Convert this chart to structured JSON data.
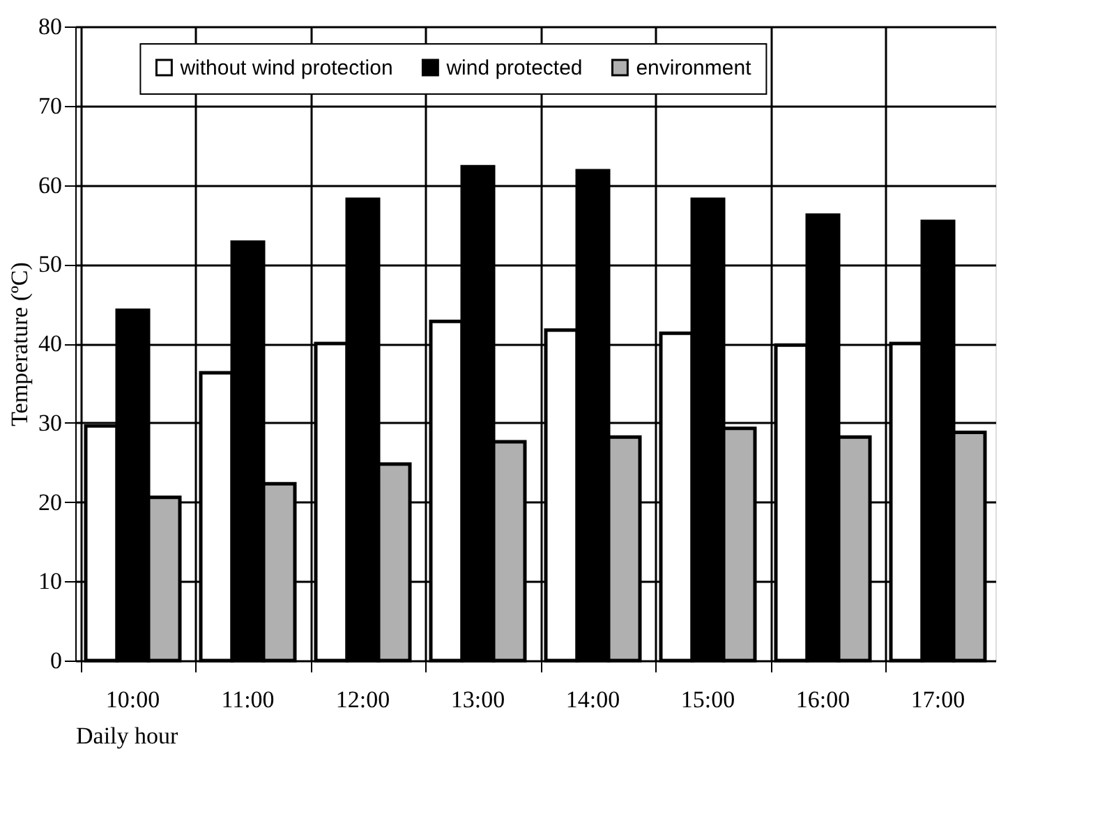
{
  "chart_data": {
    "type": "bar",
    "xlabel": "Daily hour",
    "ylabel": "Temperature (ºC)",
    "categories": [
      "10:00",
      "11:00",
      "12:00",
      "13:00",
      "14:00",
      "15:00",
      "16:00",
      "17:00"
    ],
    "series": [
      {
        "name": "without wind protection",
        "color": "#ffffff",
        "values": [
          29.6,
          36.3,
          40.0,
          42.8,
          41.7,
          41.3,
          39.8,
          40.0
        ]
      },
      {
        "name": "wind protected",
        "color": "#000000",
        "values": [
          44.2,
          52.8,
          58.2,
          62.3,
          61.8,
          58.2,
          56.2,
          55.4
        ]
      },
      {
        "name": "environment",
        "color": "#b0b0b0",
        "values": [
          20.6,
          22.3,
          24.8,
          27.6,
          28.2,
          29.3,
          28.2,
          28.8
        ]
      }
    ],
    "ylim": [
      0,
      80
    ],
    "yticks": [
      0,
      10,
      20,
      30,
      40,
      50,
      60,
      70,
      80
    ],
    "grid": true,
    "legend": "top"
  }
}
